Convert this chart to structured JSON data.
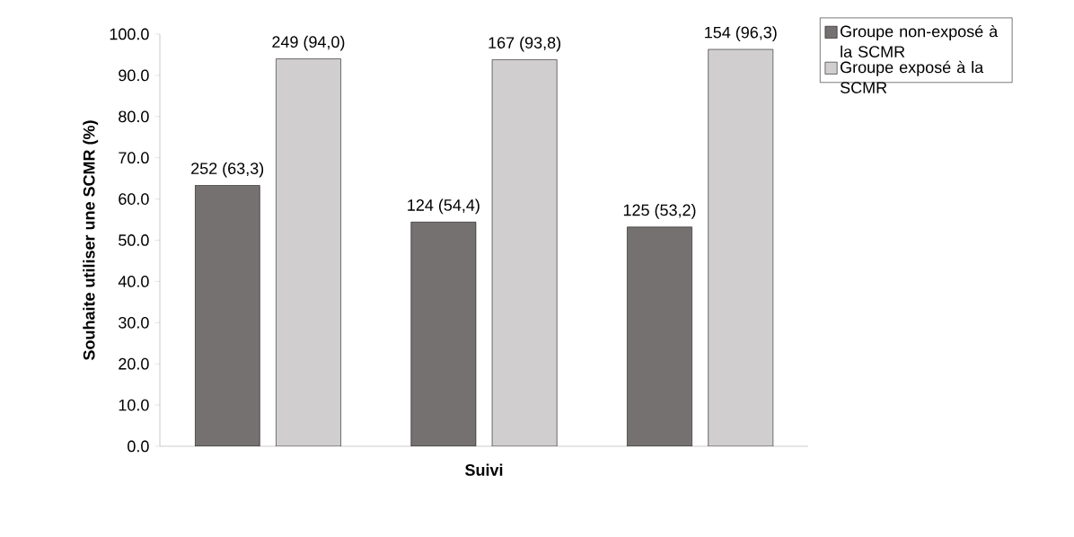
{
  "chart_data": {
    "type": "bar",
    "xlabel": "Suivi",
    "ylabel": "Souhaite utiliser une SCMR (%)",
    "categories": [
      null,
      null,
      null
    ],
    "series": [
      {
        "name": "Groupe non-exposé à la SCMR",
        "color": "#767171",
        "values": [
          63.3,
          54.4,
          53.2
        ],
        "value_labels": [
          "252 (63,3)",
          "124 (54,4)",
          "125 (53,2)"
        ]
      },
      {
        "name": "Groupe exposé à la SCMR",
        "color": "#d0cece",
        "values": [
          94.0,
          93.8,
          96.3
        ],
        "value_labels": [
          "249 (94,0)",
          "167 (93,8)",
          "154 (96,3)"
        ]
      }
    ],
    "ylim": [
      0,
      100
    ],
    "yticks": [
      {
        "value": 0,
        "label": "0.0"
      },
      {
        "value": 10,
        "label": "10.0"
      },
      {
        "value": 20,
        "label": "20.0"
      },
      {
        "value": 30,
        "label": "30.0"
      },
      {
        "value": 40,
        "label": "40.0"
      },
      {
        "value": 50,
        "label": "50.0"
      },
      {
        "value": 60,
        "label": "60.0"
      },
      {
        "value": 70,
        "label": "70.0"
      },
      {
        "value": 80,
        "label": "80.0"
      },
      {
        "value": 90,
        "label": "90.0"
      },
      {
        "value": 100,
        "label": "100.0"
      }
    ],
    "legend": "top right"
  }
}
